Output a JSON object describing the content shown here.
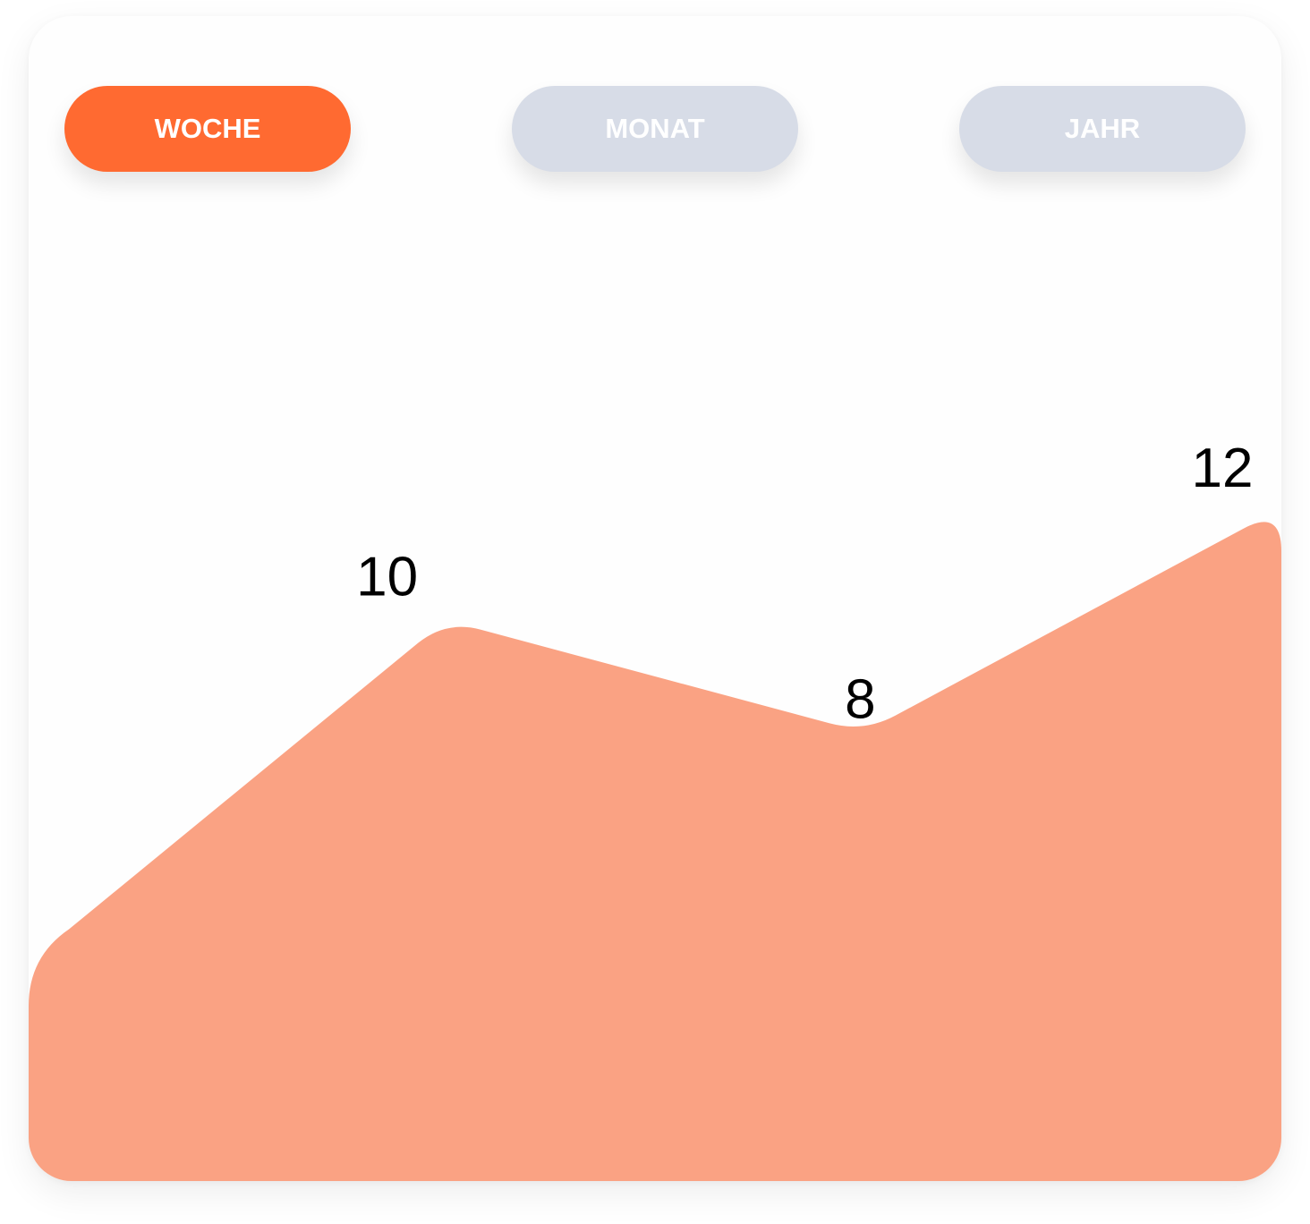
{
  "tabs": [
    {
      "label": "WOCHE",
      "active": true
    },
    {
      "label": "MONAT",
      "active": false
    },
    {
      "label": "JAHR",
      "active": false
    }
  ],
  "colors": {
    "accent": "#ff6a31",
    "inactive_tab": "#d7dce7",
    "area_fill": "#faa283",
    "tab_text": "#ffffff",
    "label_text": "#000000"
  },
  "chart_data": {
    "type": "area",
    "title": "",
    "xlabel": "",
    "ylabel": "",
    "x": [
      0,
      1,
      2,
      3
    ],
    "values": [
      4,
      10,
      8,
      12
    ],
    "data_labels": [
      null,
      "10",
      "8",
      "12"
    ],
    "ylim": [
      0,
      18
    ],
    "grid": false,
    "legend": "none"
  }
}
